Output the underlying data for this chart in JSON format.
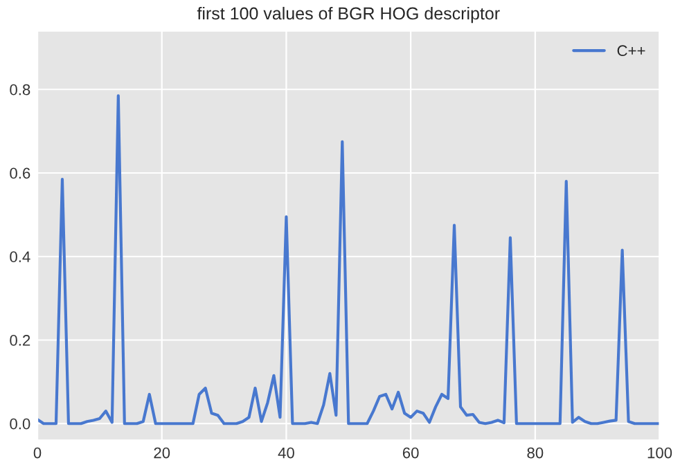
{
  "chart_data": {
    "type": "line",
    "title": "first 100 values of BGR HOG descriptor",
    "x": [
      0,
      1,
      2,
      3,
      4,
      5,
      6,
      7,
      8,
      9,
      10,
      11,
      12,
      13,
      14,
      15,
      16,
      17,
      18,
      19,
      20,
      21,
      22,
      23,
      24,
      25,
      26,
      27,
      28,
      29,
      30,
      31,
      32,
      33,
      34,
      35,
      36,
      37,
      38,
      39,
      40,
      41,
      42,
      43,
      44,
      45,
      46,
      47,
      48,
      49,
      50,
      51,
      52,
      53,
      54,
      55,
      56,
      57,
      58,
      59,
      60,
      61,
      62,
      63,
      64,
      65,
      66,
      67,
      68,
      69,
      70,
      71,
      72,
      73,
      74,
      75,
      76,
      77,
      78,
      79,
      80,
      81,
      82,
      83,
      84,
      85,
      86,
      87,
      88,
      89,
      90,
      91,
      92,
      93,
      94,
      95,
      96,
      97,
      98,
      99,
      100
    ],
    "series": [
      {
        "name": "C++",
        "color": "#4878cf",
        "values": [
          0.01,
          0,
          0,
          0,
          0.585,
          0,
          0,
          0,
          0.005,
          0.008,
          0.012,
          0.03,
          0.003,
          0.785,
          0,
          0,
          0,
          0.005,
          0.07,
          0,
          0,
          0,
          0,
          0,
          0,
          0,
          0.07,
          0.085,
          0.025,
          0.02,
          0,
          0,
          0,
          0.005,
          0.015,
          0.085,
          0.005,
          0.05,
          0.115,
          0.015,
          0.495,
          0,
          0,
          0,
          0.003,
          0,
          0.045,
          0.12,
          0.02,
          0.675,
          0,
          0,
          0,
          0,
          0.03,
          0.065,
          0.07,
          0.035,
          0.075,
          0.025,
          0.015,
          0.03,
          0.025,
          0.003,
          0.04,
          0.07,
          0.06,
          0.475,
          0.04,
          0.02,
          0.022,
          0.003,
          0,
          0.003,
          0.008,
          0.002,
          0.445,
          0,
          0,
          0,
          0,
          0,
          0,
          0,
          0,
          0.58,
          0.003,
          0.015,
          0.005,
          0,
          0,
          0.003,
          0.006,
          0.008,
          0.415,
          0.005,
          0,
          0,
          0,
          0,
          0
        ]
      }
    ],
    "xlim": [
      0,
      100
    ],
    "xticks": [
      0,
      20,
      40,
      60,
      80,
      100
    ],
    "ylim": [
      -0.04,
      0.94
    ],
    "yticks": [
      {
        "value": 0,
        "label": "0.0"
      },
      0.2,
      0.4,
      0.6,
      0.8
    ],
    "grid": true,
    "legend": "top right",
    "line_style": "solid",
    "marker": "none"
  }
}
